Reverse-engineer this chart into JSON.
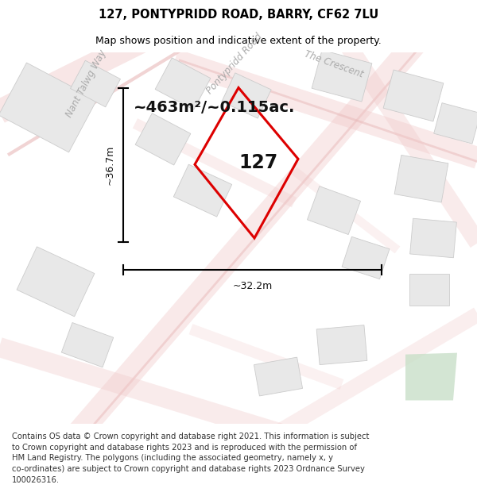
{
  "title": "127, PONTYPRIDD ROAD, BARRY, CF62 7LU",
  "subtitle": "Map shows position and indicative extent of the property.",
  "footer_text": "Contains OS data © Crown copyright and database right 2021. This information is subject\nto Crown copyright and database rights 2023 and is reproduced with the permission of\nHM Land Registry. The polygons (including the associated geometry, namely x, y\nco-ordinates) are subject to Crown copyright and database rights 2023 Ordnance Survey\n100026316.",
  "map_bg": "#ffffff",
  "title_fontsize": 10.5,
  "subtitle_fontsize": 9,
  "footer_fontsize": 7.2,
  "area_text": "~463m²/~0.115ac.",
  "plot_number": "127",
  "dim_width": "~32.2m",
  "dim_height": "~36.7m",
  "street_label_1": "Nant Talwg Way",
  "street_label_2": "Pontypridd Road",
  "street_label_3": "The Crescent",
  "road_color": "#f0c8c8",
  "building_fill": "#e8e8e8",
  "building_edge": "#cccccc",
  "street_text_color": "#aaaaaa",
  "red_color": "#dd0000",
  "green_fill": "#c8dfc8"
}
